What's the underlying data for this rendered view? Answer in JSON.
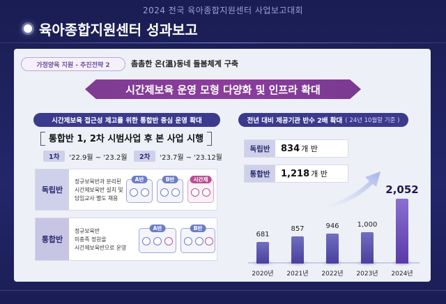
{
  "header": {
    "event_title": "2024 전국 육아종합지원센터 사업보고대회",
    "page_title": "육아종합지원센터 성과보고"
  },
  "panel": {
    "tag": "가정양육 지원 - 추진전략 2",
    "subheading": "촘촘한 온(溫)동네 돌봄체계 구축",
    "banner": "시간제보육 운영 모형 다양화 및 인프라 확대"
  },
  "left": {
    "section_title": "시간제보육 접근성 제고를 위한 통합반 중심 운영 확대",
    "pilot": "통합반 1, 2차 시범사업 후 본 사업 시행",
    "phases": [
      {
        "badge": "1차",
        "period": "'22.9월 ~ '23.2월"
      },
      {
        "badge": "2차",
        "period": "'23.7월 ~ '23.12월"
      }
    ],
    "rows": [
      {
        "label": "독립반",
        "text": [
          "정규보육반과 분리된",
          "시간제보육반 설치 및",
          "담임교사 별도 채용"
        ],
        "rooms": [
          "A반",
          "B반",
          "시간제"
        ]
      },
      {
        "label": "통합반",
        "text": [
          "정규보육반",
          "미충족 정원을",
          "시간제보육반으로 운영"
        ],
        "rooms": [
          "A반",
          "B반"
        ]
      }
    ]
  },
  "right": {
    "section_title": "전년 대비 제공기관 반수 2배 확대",
    "section_sub": "( 24년 10월말 기준 )",
    "stats": [
      {
        "label": "독립반",
        "value": "834",
        "unit": "개 반"
      },
      {
        "label": "통합반",
        "value": "1,218",
        "unit": "개 반"
      }
    ]
  },
  "chart_data": {
    "type": "bar",
    "categories": [
      "2020년",
      "2021년",
      "2022년",
      "2023년",
      "2024년"
    ],
    "values": [
      681,
      857,
      946,
      1000,
      2052
    ],
    "value_labels": [
      "681",
      "857",
      "946",
      "1,000",
      "2,052"
    ],
    "ylim": [
      0,
      2200
    ]
  },
  "colors": {
    "accent_purple": "#8c3d9c",
    "navy": "#3b3a8d",
    "bar": "#4a3f9e"
  }
}
